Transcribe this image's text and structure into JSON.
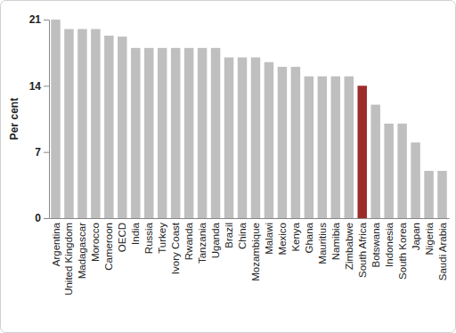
{
  "chart_data": {
    "type": "bar",
    "y_label": "Per cent",
    "categories": [
      "Argentina",
      "United Kingdom",
      "Madagascar",
      "Morocco",
      "Cameroon",
      "OECD",
      "India",
      "Russia",
      "Turkey",
      "Ivory Coast",
      "Rwanda",
      "Tanzania",
      "Uganda",
      "Brazil",
      "China",
      "Mozambique",
      "Malawi",
      "Mexico",
      "Kenya",
      "Ghana",
      "Mauritius",
      "Namibia",
      "Zimbabwe",
      "South Africa",
      "Botswana",
      "Indonesia",
      "South Korea",
      "Japan",
      "Nigeria",
      "Saudi Arabia"
    ],
    "values": [
      21,
      20,
      20,
      20,
      19.3,
      19.2,
      18,
      18,
      18,
      18,
      18,
      18,
      18,
      17,
      17,
      17,
      16.5,
      16,
      16,
      15,
      15,
      15,
      15,
      14,
      12,
      10,
      10,
      8,
      5,
      5
    ],
    "colors": [
      "#bfbfbf",
      "#bfbfbf",
      "#bfbfbf",
      "#bfbfbf",
      "#bfbfbf",
      "#bfbfbf",
      "#bfbfbf",
      "#bfbfbf",
      "#bfbfbf",
      "#bfbfbf",
      "#bfbfbf",
      "#bfbfbf",
      "#bfbfbf",
      "#bfbfbf",
      "#bfbfbf",
      "#bfbfbf",
      "#bfbfbf",
      "#bfbfbf",
      "#bfbfbf",
      "#bfbfbf",
      "#bfbfbf",
      "#bfbfbf",
      "#bfbfbf",
      "#9e2b2b",
      "#bfbfbf",
      "#bfbfbf",
      "#bfbfbf",
      "#bfbfbf",
      "#bfbfbf",
      "#bfbfbf"
    ],
    "ylim": [
      0,
      21
    ],
    "yticks": [
      0,
      7,
      14,
      21
    ],
    "grid": false
  }
}
